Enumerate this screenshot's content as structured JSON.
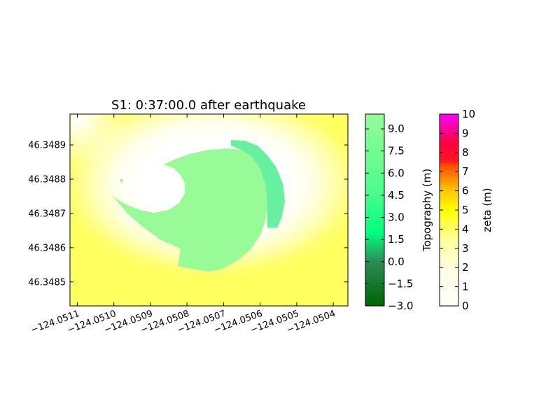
{
  "chart_data": {
    "type": "heatmap",
    "title": "S1: 0:37:00.0 after earthquake",
    "xlim": [
      -124.05112,
      -124.05036
    ],
    "ylim": [
      46.34843,
      46.34899
    ],
    "x_ticks": [
      -124.0511,
      -124.051,
      -124.0509,
      -124.0508,
      -124.0507,
      -124.0506,
      -124.0505,
      -124.0504
    ],
    "x_tick_labels": [
      "−124.0511",
      "−124.0510",
      "−124.0509",
      "−124.0508",
      "−124.0507",
      "−124.0506",
      "−124.0505",
      "−124.0504"
    ],
    "y_ticks": [
      46.3485,
      46.3486,
      46.3487,
      46.3488,
      46.3489
    ],
    "y_tick_labels": [
      "46.3485",
      "46.3486",
      "46.3487",
      "46.3488",
      "46.3489"
    ],
    "grid": false,
    "colorbars": [
      {
        "label": "Topography (m)",
        "range": [
          -3.0,
          10.0
        ],
        "ticks": [
          -3.0,
          -1.5,
          0.0,
          1.5,
          3.0,
          4.5,
          6.0,
          7.5,
          9.0
        ],
        "tick_labels": [
          "−3.0",
          "−1.5",
          "0.0",
          "1.5",
          "3.0",
          "4.5",
          "6.0",
          "7.5",
          "9.0"
        ],
        "colors": [
          "#006400",
          "#2e8b57",
          "#00ff80",
          "#98fb98"
        ]
      },
      {
        "label": "zeta (m)",
        "range": [
          0,
          10
        ],
        "ticks": [
          0,
          1,
          2,
          3,
          4,
          5,
          6,
          7,
          8,
          9,
          10
        ],
        "tick_labels": [
          "0",
          "1",
          "2",
          "3",
          "4",
          "5",
          "6",
          "7",
          "8",
          "9",
          "10"
        ],
        "colors": [
          "#ffffff",
          "#ffff00",
          "#ff4500",
          "#ff0000",
          "#ff00ff"
        ]
      }
    ],
    "colors": {
      "water_high": "#ffff66",
      "water_low": "#ffffff",
      "land_main": "#98fb98",
      "land_ridge": "#66f0a0"
    }
  }
}
